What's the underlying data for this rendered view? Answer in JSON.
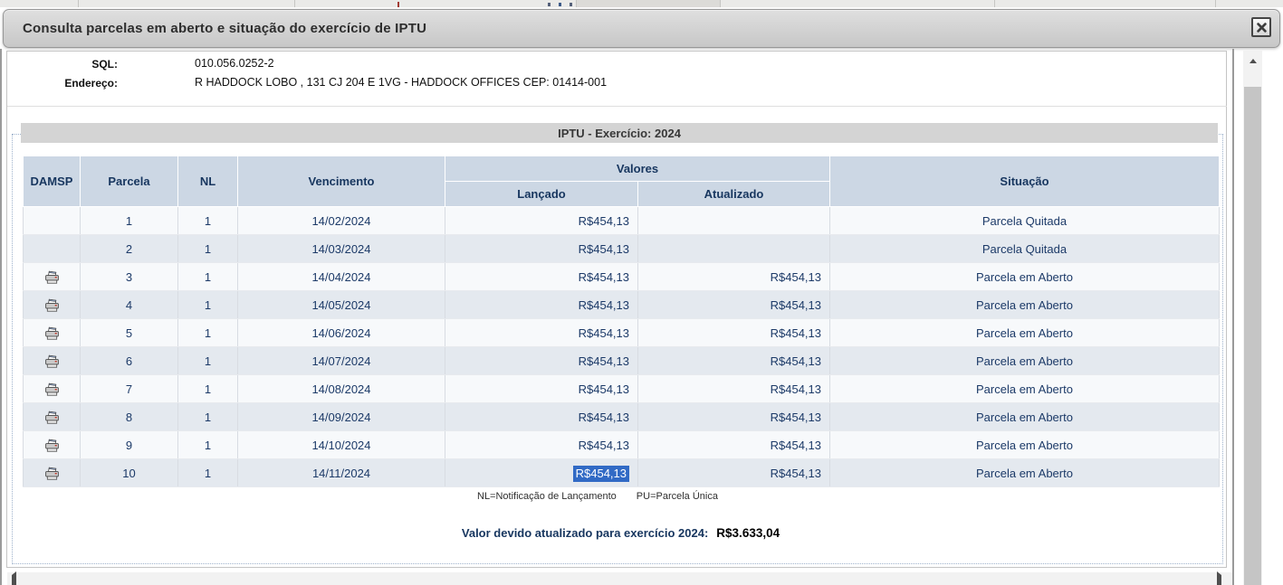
{
  "dialog": {
    "title": "Consulta parcelas em aberto e situação do exercício de IPTU"
  },
  "property_info": {
    "sql_label": "SQL:",
    "sql_value": "010.056.0252-2",
    "endereco_label": "Endereço:",
    "endereco_value": "R HADDOCK LOBO , 131 CJ 204 E 1VG - HADDOCK OFFICES CEP: 01414-001"
  },
  "table": {
    "caption": "IPTU - Exercício: 2024",
    "headers": {
      "damsp": "DAMSP",
      "parcela": "Parcela",
      "nl": "NL",
      "vencimento": "Vencimento",
      "valores": "Valores",
      "lancado": "Lançado",
      "atualizado": "Atualizado",
      "situacao": "Situação"
    },
    "rows": [
      {
        "print": false,
        "parcela": "1",
        "nl": "1",
        "vencimento": "14/02/2024",
        "lancado": "R$454,13",
        "atualizado": "",
        "situacao": "Parcela Quitada",
        "selected": false
      },
      {
        "print": false,
        "parcela": "2",
        "nl": "1",
        "vencimento": "14/03/2024",
        "lancado": "R$454,13",
        "atualizado": "",
        "situacao": "Parcela Quitada",
        "selected": false
      },
      {
        "print": true,
        "parcela": "3",
        "nl": "1",
        "vencimento": "14/04/2024",
        "lancado": "R$454,13",
        "atualizado": "R$454,13",
        "situacao": "Parcela em Aberto",
        "selected": false
      },
      {
        "print": true,
        "parcela": "4",
        "nl": "1",
        "vencimento": "14/05/2024",
        "lancado": "R$454,13",
        "atualizado": "R$454,13",
        "situacao": "Parcela em Aberto",
        "selected": false
      },
      {
        "print": true,
        "parcela": "5",
        "nl": "1",
        "vencimento": "14/06/2024",
        "lancado": "R$454,13",
        "atualizado": "R$454,13",
        "situacao": "Parcela em Aberto",
        "selected": false
      },
      {
        "print": true,
        "parcela": "6",
        "nl": "1",
        "vencimento": "14/07/2024",
        "lancado": "R$454,13",
        "atualizado": "R$454,13",
        "situacao": "Parcela em Aberto",
        "selected": false
      },
      {
        "print": true,
        "parcela": "7",
        "nl": "1",
        "vencimento": "14/08/2024",
        "lancado": "R$454,13",
        "atualizado": "R$454,13",
        "situacao": "Parcela em Aberto",
        "selected": false
      },
      {
        "print": true,
        "parcela": "8",
        "nl": "1",
        "vencimento": "14/09/2024",
        "lancado": "R$454,13",
        "atualizado": "R$454,13",
        "situacao": "Parcela em Aberto",
        "selected": false
      },
      {
        "print": true,
        "parcela": "9",
        "nl": "1",
        "vencimento": "14/10/2024",
        "lancado": "R$454,13",
        "atualizado": "R$454,13",
        "situacao": "Parcela em Aberto",
        "selected": false
      },
      {
        "print": true,
        "parcela": "10",
        "nl": "1",
        "vencimento": "14/11/2024",
        "lancado": "R$454,13",
        "atualizado": "R$454,13",
        "situacao": "Parcela em Aberto",
        "selected": true
      }
    ],
    "legend_nl": "NL=Notificação de Lançamento",
    "legend_pu": "PU=Parcela Única",
    "total_label": "Valor devido atualizado para exercício 2024:",
    "total_value": "R$3.633,04"
  },
  "colors": {
    "header_bg": "#ccd7e4",
    "header_text": "#17365f",
    "body_text": "#1c3a68",
    "row_light": "#f7f9fb",
    "row_alt": "#e4e9ef",
    "caption_bg": "#d4d4d4",
    "selection": "#316ac5"
  }
}
